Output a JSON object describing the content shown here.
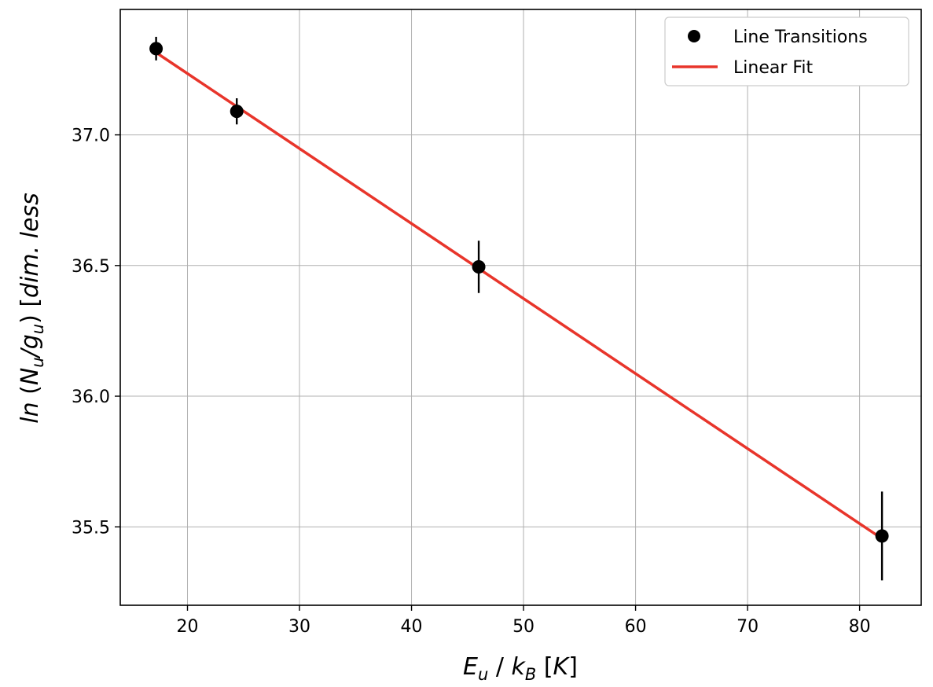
{
  "chart_data": {
    "type": "scatter",
    "xlabel": "E_u / k_B [K]",
    "ylabel": "ln (N_u/g_u) [dim. less]",
    "xlim": [
      14,
      85.5
    ],
    "ylim": [
      35.2,
      37.48
    ],
    "xticks": [
      20,
      30,
      40,
      50,
      60,
      70,
      80
    ],
    "yticks": [
      35.5,
      36.0,
      36.5,
      37.0
    ],
    "ytick_labels": [
      "35.5",
      "36.0",
      "36.5",
      "37.0"
    ],
    "grid": true,
    "legend_position": "top-right",
    "series": [
      {
        "name": "Line Transitions",
        "kind": "points-with-errorbars",
        "color": "#000000",
        "x": [
          17.2,
          24.4,
          46.0,
          82.0
        ],
        "y": [
          37.33,
          37.09,
          36.495,
          35.465
        ],
        "yerr": [
          0.045,
          0.05,
          0.1,
          0.17
        ]
      },
      {
        "name": "Linear Fit",
        "kind": "line",
        "color": "#e8352b",
        "x": [
          17.2,
          82.0
        ],
        "y": [
          37.315,
          35.455
        ]
      }
    ]
  }
}
